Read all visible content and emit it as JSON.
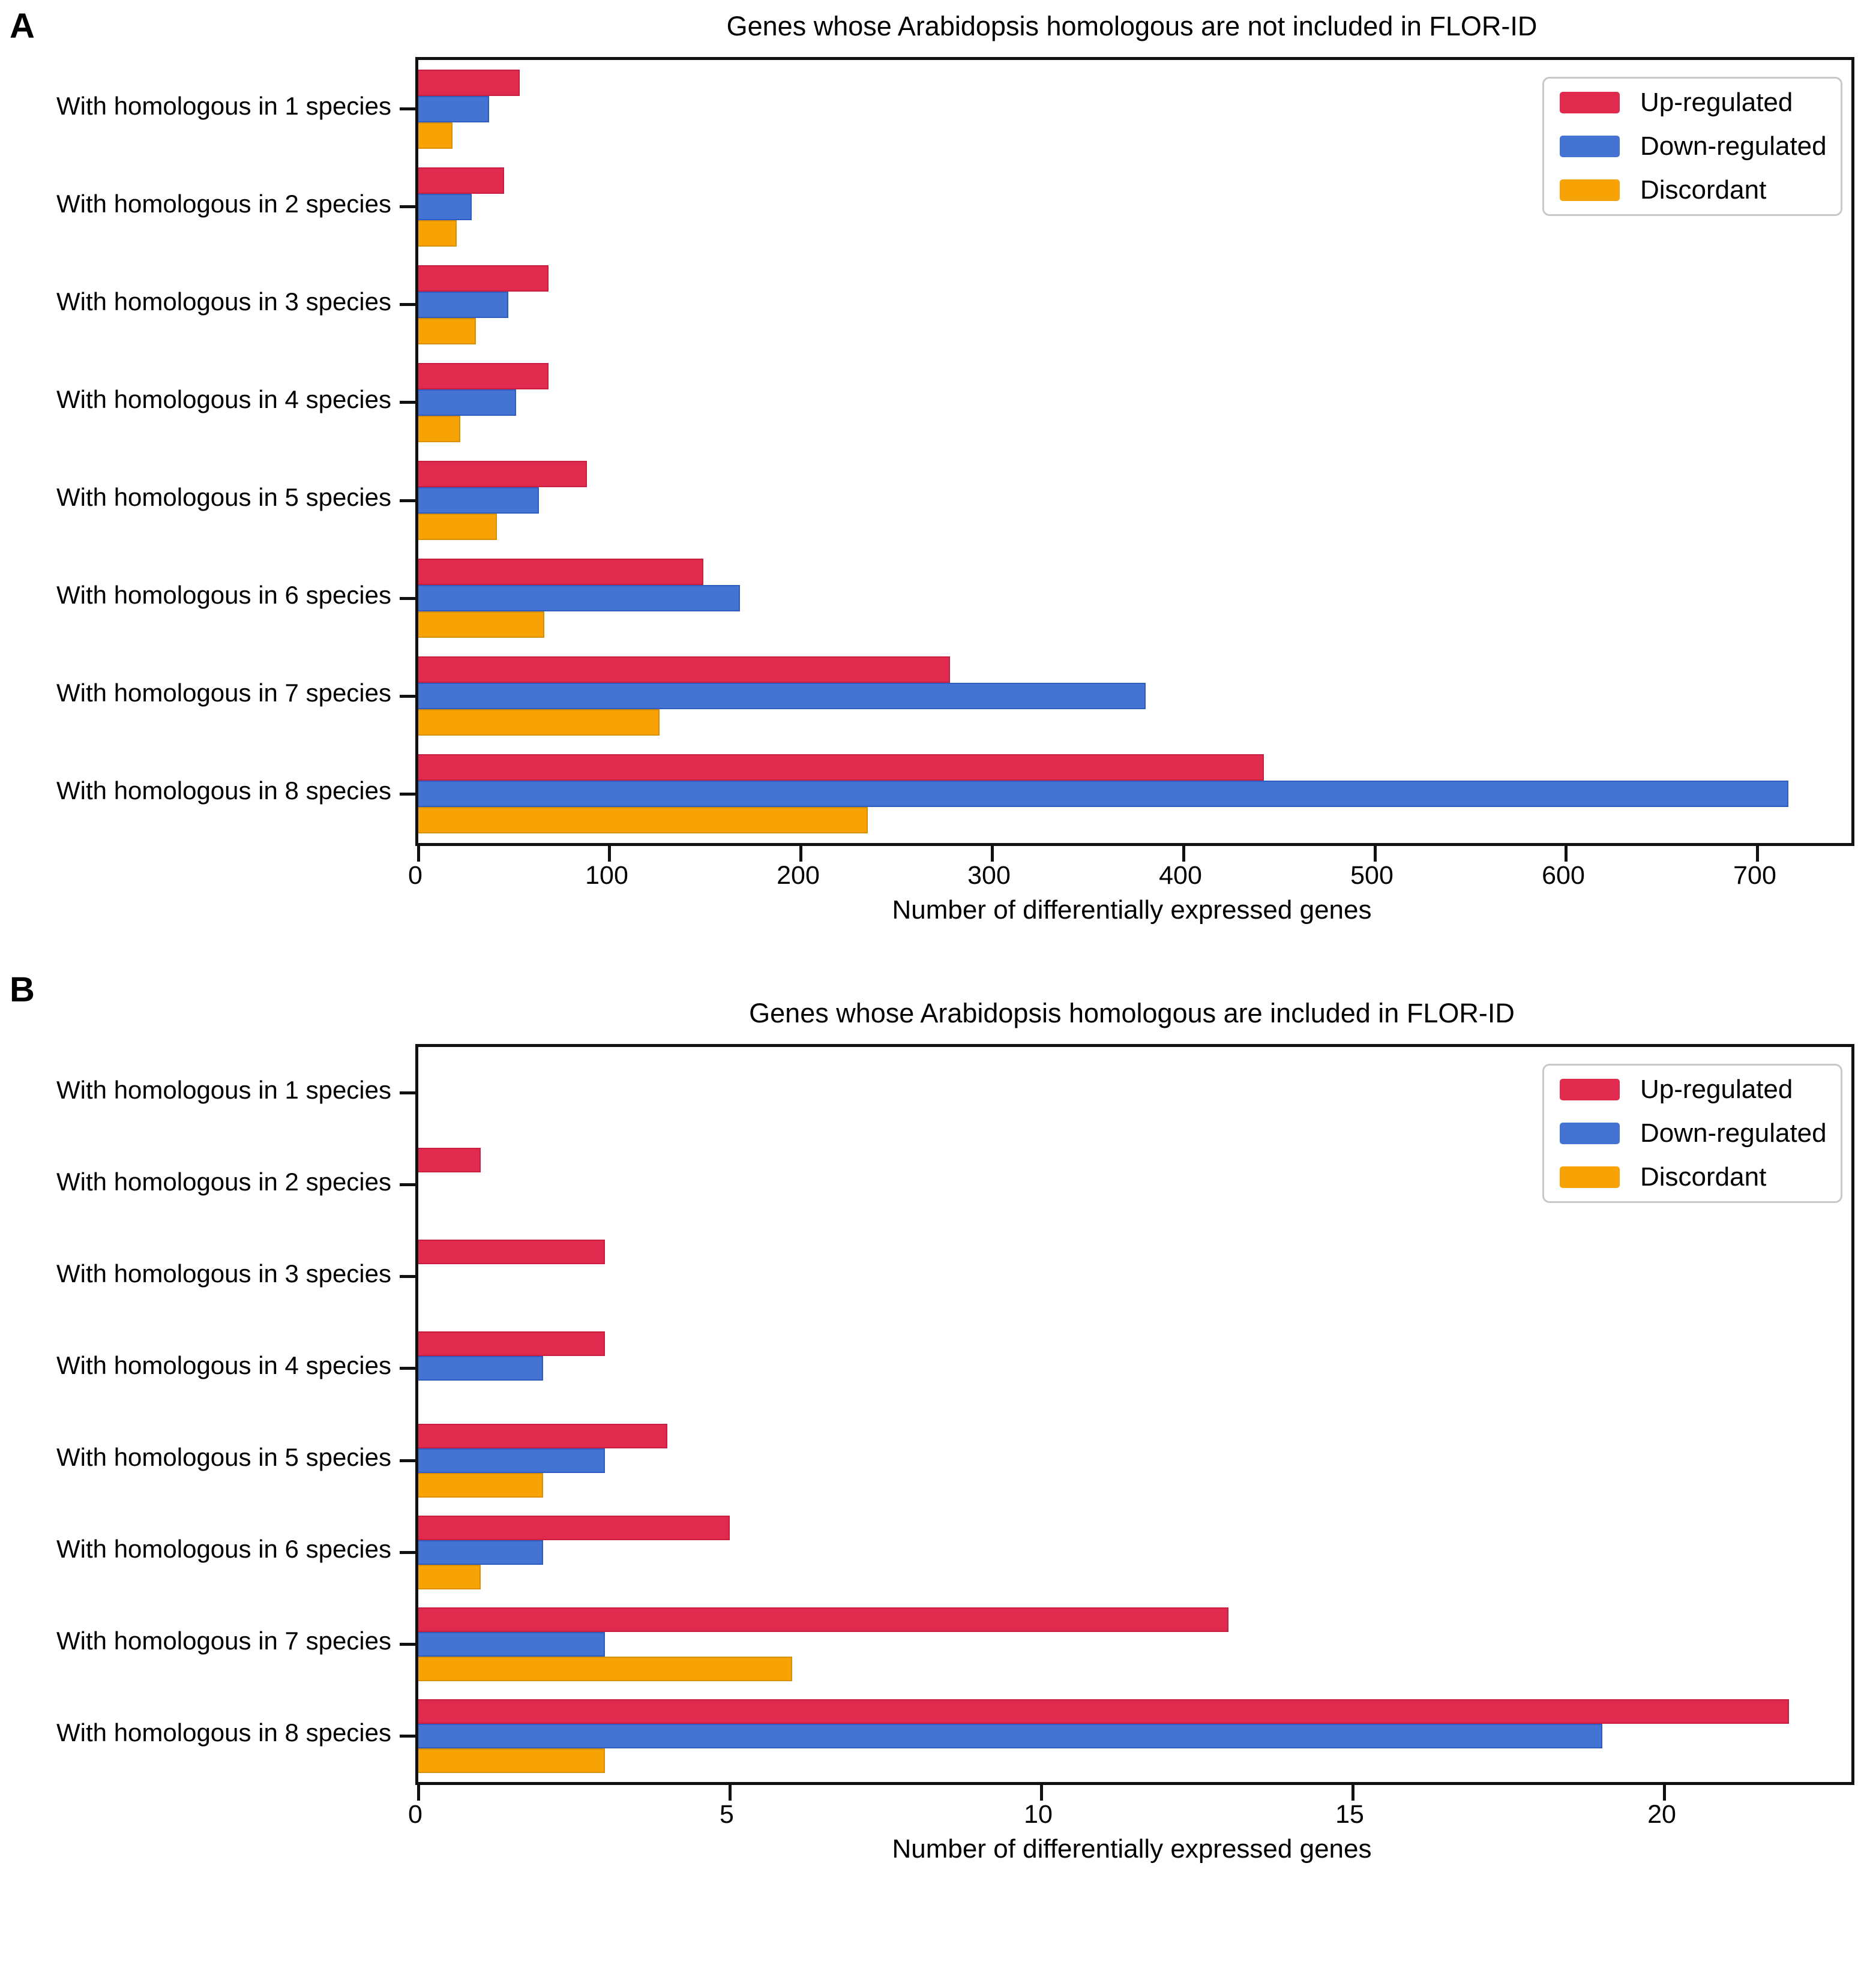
{
  "figure_caption_letters": {
    "panel_a": "A",
    "panel_b": "B"
  },
  "chart_data": [
    {
      "type": "bar",
      "orientation": "horizontal",
      "panel_label": "A",
      "title": "Genes whose Arabidopsis homologous are not included in FLOR-ID",
      "xlabel": "Number of differentially expressed genes",
      "categories": [
        "With homologous in 1 species",
        "With homologous in 2 species",
        "With homologous in 3 species",
        "With homologous in 4 species",
        "With homologous in 5 species",
        "With homologous in 6 species",
        "With homologous in 7 species",
        "With homologous in 8 species"
      ],
      "series": [
        {
          "name": "Up-regulated",
          "color": "#e02a4e",
          "edge": "#c81f40",
          "values": [
            53,
            45,
            68,
            68,
            88,
            149,
            278,
            442
          ]
        },
        {
          "name": "Down-regulated",
          "color": "#4473d3",
          "edge": "#2f5cc0",
          "values": [
            37,
            28,
            47,
            51,
            63,
            168,
            380,
            716
          ]
        },
        {
          "name": "Discordant",
          "color": "#f7a205",
          "edge": "#d98f00",
          "values": [
            18,
            20,
            30,
            22,
            41,
            66,
            126,
            235
          ]
        }
      ],
      "xticks": [
        0,
        100,
        200,
        300,
        400,
        500,
        600,
        700
      ],
      "xlim": [
        0,
        749
      ],
      "grid": false,
      "legend_position": "upper right"
    },
    {
      "type": "bar",
      "orientation": "horizontal",
      "panel_label": "B",
      "title": "Genes whose Arabidopsis homologous are included in FLOR-ID",
      "xlabel": "Number of differentially expressed genes",
      "categories": [
        "With homologous in 1 species",
        "With homologous in 2 species",
        "With homologous in 3 species",
        "With homologous in 4 species",
        "With homologous in 5 species",
        "With homologous in 6 species",
        "With homologous in 7 species",
        "With homologous in 8 species"
      ],
      "series": [
        {
          "name": "Up-regulated",
          "color": "#e02a4e",
          "edge": "#c81f40",
          "values": [
            0,
            1,
            3,
            3,
            4,
            5,
            13,
            22
          ]
        },
        {
          "name": "Down-regulated",
          "color": "#4473d3",
          "edge": "#2f5cc0",
          "values": [
            0,
            0,
            0,
            2,
            3,
            2,
            3,
            19
          ]
        },
        {
          "name": "Discordant",
          "color": "#f7a205",
          "edge": "#d98f00",
          "values": [
            0,
            0,
            0,
            0,
            2,
            1,
            6,
            3
          ]
        }
      ],
      "xticks": [
        0,
        5,
        10,
        15,
        20
      ],
      "xlim": [
        0,
        23
      ],
      "grid": false,
      "legend_position": "upper right"
    }
  ]
}
